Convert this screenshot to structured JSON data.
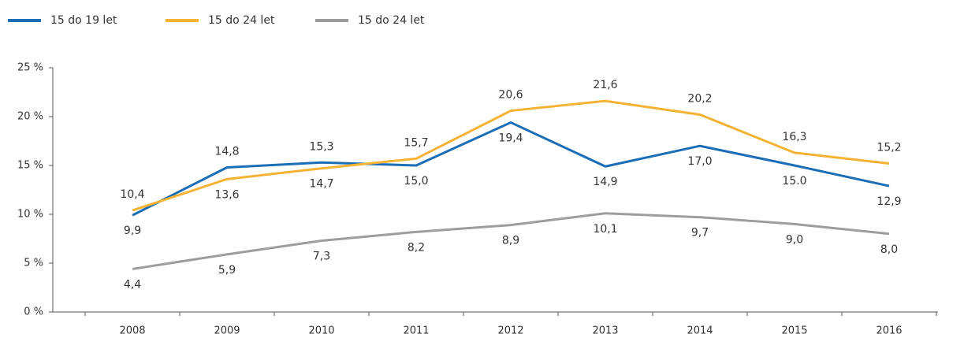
{
  "chart_data": {
    "type": "line",
    "categories": [
      "2008",
      "2009",
      "2010",
      "2011",
      "2012",
      "2013",
      "2014",
      "2015",
      "2016"
    ],
    "series": [
      {
        "name": "15 do 19 let",
        "color": "#1b6db5",
        "values": [
          9.9,
          14.8,
          15.3,
          15.0,
          19.4,
          14.9,
          17.0,
          15.0,
          12.9
        ],
        "value_labels": [
          "9,9",
          "14,8",
          "15,3",
          "15,0",
          "19,4",
          "14,9",
          "17,0",
          "15.0",
          "12,9"
        ]
      },
      {
        "name": "15 do 24 let",
        "color": "#f5b335",
        "values": [
          10.4,
          13.6,
          14.7,
          15.7,
          20.6,
          21.6,
          20.2,
          16.3,
          15.2
        ],
        "value_labels": [
          "10,4",
          "13,6",
          "14,7",
          "15,7",
          "20,6",
          "21,6",
          "20,2",
          "16,3",
          "15,2"
        ]
      },
      {
        "name": "15 do 24 let",
        "color": "#9d9d9d",
        "values": [
          4.4,
          5.9,
          7.3,
          8.2,
          8.9,
          10.1,
          9.7,
          9.0,
          8.0
        ],
        "value_labels": [
          "4,4",
          "5,9",
          "7,3",
          "8,2",
          "8,9",
          "10,1",
          "9,7",
          "9,0",
          "8,0"
        ]
      }
    ],
    "ylim": [
      0,
      25
    ],
    "yticks": [
      {
        "value": 0,
        "label": "0 %"
      },
      {
        "value": 5,
        "label": "5 %"
      },
      {
        "value": 10,
        "label": "10 %"
      },
      {
        "value": 15,
        "label": "15 %"
      },
      {
        "value": 20,
        "label": "20 %"
      },
      {
        "value": 25,
        "label": "25 %"
      }
    ],
    "legend": "top-left"
  }
}
